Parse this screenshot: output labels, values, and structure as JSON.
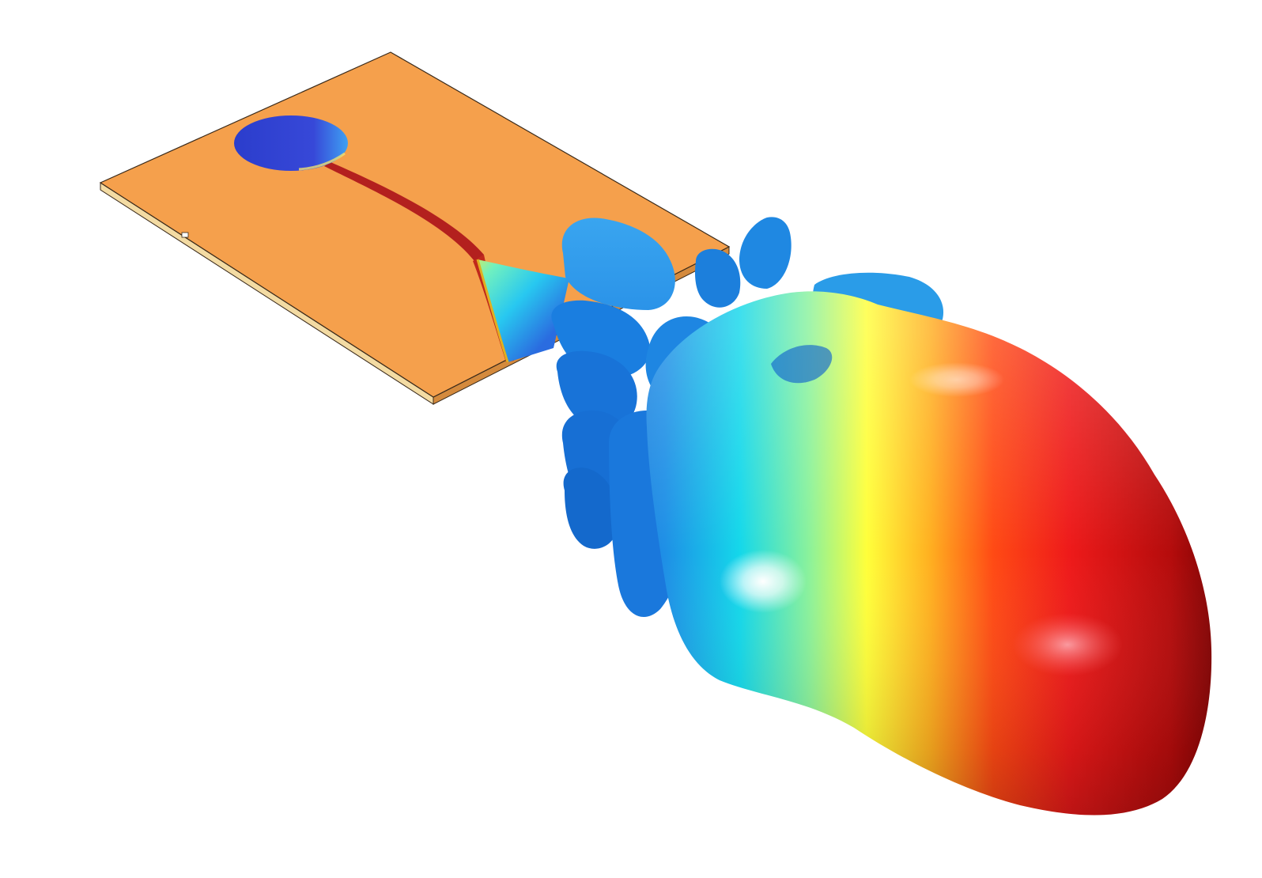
{
  "scene": {
    "background": "#ffffff",
    "colors": {
      "board_top": "#f5a04c",
      "board_edge_light": "#f3dba3",
      "board_edge_dark": "#d48a3d",
      "outline": "#3a2a1a",
      "patch_field": "#3346d4",
      "feed_trace": "#b3201e",
      "lobe_low": "#1a74d8",
      "lobe_mid_cyan": "#12e0e6",
      "lobe_mid_yellow": "#ffff3a",
      "lobe_high_red": "#ee1a1a",
      "lobe_max": "#6a0000"
    },
    "objects": [
      "substrate-board",
      "circular-patch",
      "feed-line",
      "tapered-field-region",
      "side-lobes",
      "main-radiation-lobe"
    ]
  }
}
